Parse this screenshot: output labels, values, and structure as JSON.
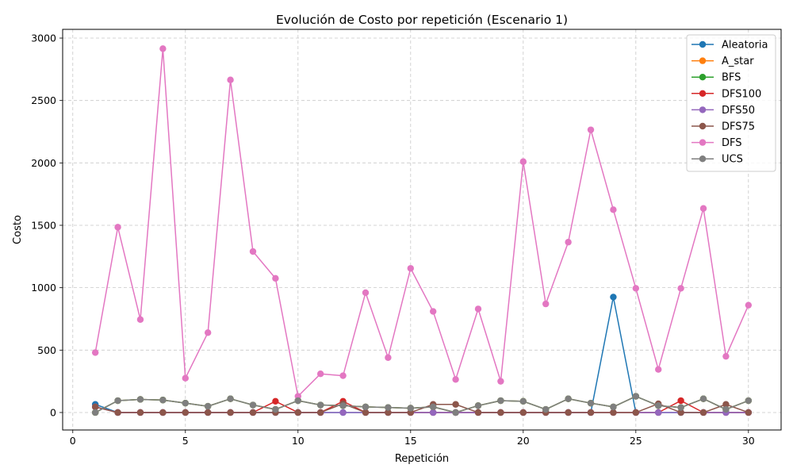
{
  "chart_data": {
    "type": "line",
    "title": "Evolución de Costo por repetición (Escenario 1)",
    "xlabel": "Repetición",
    "ylabel": "Costo",
    "xlim": [
      -0.45,
      31.45
    ],
    "ylim": [
      -140,
      3070
    ],
    "xticks": [
      0,
      5,
      10,
      15,
      20,
      25,
      30
    ],
    "yticks": [
      0,
      500,
      1000,
      1500,
      2000,
      2500,
      3000
    ],
    "grid": true,
    "legend_position": "top-right",
    "x": [
      1,
      2,
      3,
      4,
      5,
      6,
      7,
      8,
      9,
      10,
      11,
      12,
      13,
      14,
      15,
      16,
      17,
      18,
      19,
      20,
      21,
      22,
      23,
      24,
      25,
      26,
      27,
      28,
      29,
      30
    ],
    "series": [
      {
        "name": "Aleatoria",
        "color": "#1f77b4",
        "values": [
          65,
          0,
          0,
          0,
          0,
          0,
          0,
          0,
          0,
          0,
          0,
          0,
          0,
          0,
          0,
          0,
          0,
          0,
          0,
          0,
          0,
          0,
          0,
          925,
          0,
          0,
          0,
          0,
          0,
          0
        ]
      },
      {
        "name": "A_star",
        "color": "#ff7f0e",
        "values": [
          0,
          95,
          105,
          100,
          75,
          50,
          110,
          60,
          25,
          95,
          60,
          55,
          45,
          40,
          35,
          45,
          0,
          55,
          95,
          90,
          25,
          110,
          75,
          45,
          130,
          55,
          40,
          110,
          25,
          95
        ]
      },
      {
        "name": "BFS",
        "color": "#2ca02c",
        "values": [
          0,
          95,
          105,
          100,
          75,
          50,
          110,
          60,
          25,
          95,
          60,
          55,
          45,
          40,
          35,
          45,
          0,
          55,
          95,
          90,
          25,
          110,
          75,
          45,
          130,
          55,
          40,
          110,
          25,
          95
        ]
      },
      {
        "name": "DFS100",
        "color": "#d62728",
        "values": [
          45,
          0,
          0,
          0,
          0,
          0,
          0,
          0,
          90,
          0,
          0,
          90,
          0,
          0,
          0,
          0,
          0,
          0,
          0,
          0,
          0,
          0,
          0,
          0,
          0,
          0,
          95,
          0,
          0,
          0
        ]
      },
      {
        "name": "DFS50",
        "color": "#9467bd",
        "values": [
          45,
          0,
          0,
          0,
          0,
          0,
          0,
          0,
          0,
          0,
          0,
          0,
          0,
          0,
          0,
          0,
          0,
          0,
          0,
          0,
          0,
          0,
          0,
          0,
          0,
          0,
          0,
          0,
          0,
          0
        ]
      },
      {
        "name": "DFS75",
        "color": "#8c564b",
        "values": [
          45,
          0,
          0,
          0,
          0,
          0,
          0,
          0,
          0,
          0,
          0,
          70,
          0,
          0,
          0,
          65,
          65,
          0,
          0,
          0,
          0,
          0,
          0,
          0,
          0,
          70,
          0,
          0,
          65,
          0
        ]
      },
      {
        "name": "DFS",
        "color": "#e377c2",
        "values": [
          480,
          1485,
          745,
          2915,
          275,
          640,
          2665,
          1290,
          1075,
          130,
          310,
          295,
          960,
          440,
          1155,
          810,
          265,
          830,
          250,
          2010,
          870,
          1365,
          2265,
          1625,
          995,
          345,
          995,
          1635,
          450,
          860
        ]
      },
      {
        "name": "UCS",
        "color": "#7f7f7f",
        "values": [
          0,
          95,
          105,
          100,
          75,
          50,
          110,
          60,
          25,
          95,
          60,
          55,
          45,
          40,
          35,
          45,
          0,
          55,
          95,
          90,
          25,
          110,
          75,
          45,
          130,
          55,
          40,
          110,
          25,
          95
        ]
      }
    ]
  }
}
